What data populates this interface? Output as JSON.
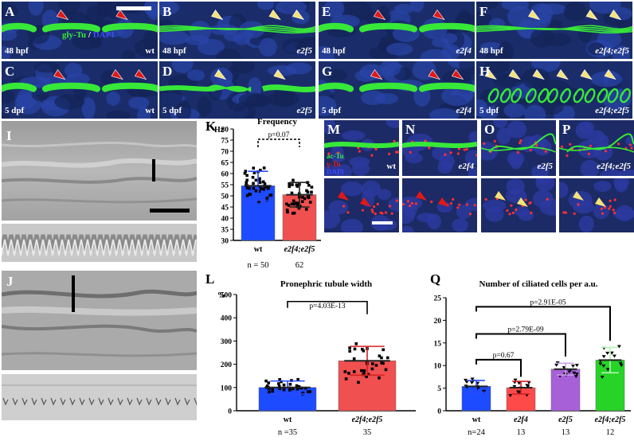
{
  "figure": {
    "fluorescence_panels": [
      {
        "id": "A",
        "timepoint": "48 hpf",
        "genotype": "wt"
      },
      {
        "id": "B",
        "timepoint": "48 hpf",
        "genotype": "e2f5"
      },
      {
        "id": "E",
        "timepoint": "48 hpf",
        "genotype": "e2f4"
      },
      {
        "id": "F",
        "timepoint": "48 hpf",
        "genotype": "e2f4;e2f5"
      },
      {
        "id": "C",
        "timepoint": "5 dpf",
        "genotype": "wt"
      },
      {
        "id": "D",
        "timepoint": "5 dpf",
        "genotype": "e2f5"
      },
      {
        "id": "G",
        "timepoint": "5 dpf",
        "genotype": "e2f4"
      },
      {
        "id": "H",
        "timepoint": "5 dpf",
        "genotype": "e2f4;e2f5"
      }
    ],
    "stain_legend": {
      "part1": "gly-Tu",
      "separator": " / ",
      "part2": "DAPI"
    },
    "brightfield": {
      "panel_I": "I",
      "panel_J": "J"
    },
    "panel_K": {
      "label": "K"
    },
    "panel_L": {
      "label": "L"
    },
    "panel_Q": {
      "label": "Q"
    },
    "cilia_panels": [
      {
        "id": "M",
        "genotype": "wt"
      },
      {
        "id": "N",
        "genotype": "e2f4"
      },
      {
        "id": "O",
        "genotype": "e2f5"
      },
      {
        "id": "P",
        "genotype": "e2f4;e2f5"
      }
    ],
    "cilia_legend": {
      "line1": "ac-Tu",
      "line2": "γ-Tu",
      "line3": "DAPI"
    },
    "colors": {
      "wt_bar": "#1d4bff",
      "mutant_bar": "#f05050",
      "e2f4_bar": "#ff4a4a",
      "e2f5_bar": "#a860d8",
      "double_bar": "#27d327",
      "green": "#38e838",
      "red_arrow": "#e01818",
      "yellow_arrow": "#f5e27a"
    }
  },
  "chart_data": [
    {
      "type": "bar",
      "title": "Frequency",
      "ylabel": "Hz",
      "categories": [
        "wt",
        "e2f4;e2f5"
      ],
      "values": [
        54.5,
        50.5
      ],
      "error": [
        6.5,
        5.5
      ],
      "ylim": [
        30,
        80
      ],
      "yticks": [
        30,
        35,
        40,
        45,
        50,
        55,
        60,
        65,
        70,
        75,
        80
      ],
      "n_label": "n = 50",
      "n_values": [
        "n = 50",
        "62"
      ],
      "annotation": "p=0.07"
    },
    {
      "type": "bar",
      "title": "Pronephric tubule width",
      "ylabel": "%",
      "categories": [
        "wt",
        "e2f4;e2f5"
      ],
      "values": [
        100,
        215
      ],
      "error": [
        28,
        62
      ],
      "ylim": [
        0,
        500
      ],
      "yticks": [
        0,
        100,
        200,
        300,
        400,
        500
      ],
      "n_values": [
        "n =35",
        "35"
      ],
      "annotation": "p=4.03E-13"
    },
    {
      "type": "bar",
      "title": "Number of ciliated cells per a.u.",
      "categories": [
        "wt",
        "e2f4",
        "e2f5",
        "e2f4;e2f5"
      ],
      "values": [
        5.4,
        5.1,
        9.2,
        11.2
      ],
      "error": [
        1.3,
        1.4,
        1.3,
        2.8
      ],
      "ylim": [
        0,
        25
      ],
      "yticks": [
        0,
        5,
        10,
        15,
        20,
        25
      ],
      "n_values": [
        "n=24",
        "13",
        "13",
        "12"
      ],
      "annotations": [
        "p=0.67",
        "p=2.79E-09",
        "p=2.91E-05"
      ]
    }
  ]
}
